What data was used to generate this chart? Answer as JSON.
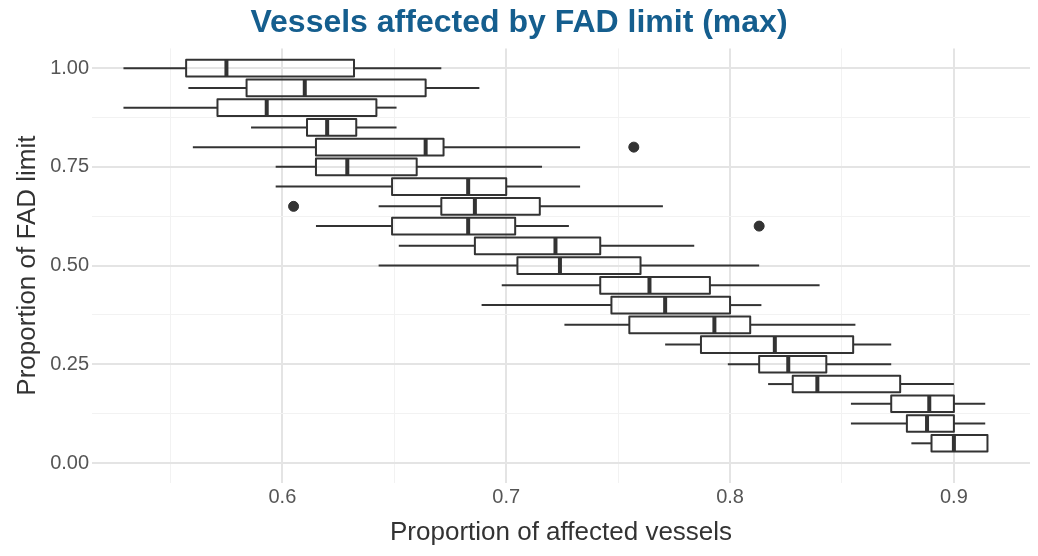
{
  "chart_data": {
    "type": "box",
    "orientation": "horizontal",
    "title": "Vessels affected by FAD limit (max)",
    "xlabel": "Proportion of affected vessels",
    "ylabel": "Proportion of FAD limit",
    "x": [
      1.0,
      0.95,
      0.9,
      0.85,
      0.8,
      0.75,
      0.7,
      0.65,
      0.6,
      0.55,
      0.5,
      0.45,
      0.4,
      0.35,
      0.3,
      0.25,
      0.2,
      0.15,
      0.1,
      0.05
    ],
    "boxes": [
      {
        "low": 0.529,
        "q1": 0.557,
        "median": 0.575,
        "q3": 0.632,
        "high": 0.671
      },
      {
        "low": 0.558,
        "q1": 0.584,
        "median": 0.61,
        "q3": 0.664,
        "high": 0.688
      },
      {
        "low": 0.529,
        "q1": 0.571,
        "median": 0.593,
        "q3": 0.642,
        "high": 0.651
      },
      {
        "low": 0.586,
        "q1": 0.611,
        "median": 0.62,
        "q3": 0.633,
        "high": 0.651
      },
      {
        "low": 0.56,
        "q1": 0.615,
        "median": 0.664,
        "q3": 0.672,
        "high": 0.733,
        "outliers": [
          0.757
        ]
      },
      {
        "low": 0.597,
        "q1": 0.615,
        "median": 0.629,
        "q3": 0.66,
        "high": 0.716
      },
      {
        "low": 0.597,
        "q1": 0.649,
        "median": 0.683,
        "q3": 0.7,
        "high": 0.733
      },
      {
        "low": 0.643,
        "q1": 0.671,
        "median": 0.686,
        "q3": 0.715,
        "high": 0.77,
        "outliers": [
          0.605
        ]
      },
      {
        "low": 0.615,
        "q1": 0.649,
        "median": 0.683,
        "q3": 0.704,
        "high": 0.728,
        "outliers": [
          0.813
        ]
      },
      {
        "low": 0.652,
        "q1": 0.686,
        "median": 0.722,
        "q3": 0.742,
        "high": 0.784
      },
      {
        "low": 0.643,
        "q1": 0.705,
        "median": 0.724,
        "q3": 0.76,
        "high": 0.813
      },
      {
        "low": 0.698,
        "q1": 0.742,
        "median": 0.764,
        "q3": 0.791,
        "high": 0.84
      },
      {
        "low": 0.689,
        "q1": 0.747,
        "median": 0.771,
        "q3": 0.8,
        "high": 0.814
      },
      {
        "low": 0.726,
        "q1": 0.755,
        "median": 0.793,
        "q3": 0.809,
        "high": 0.856
      },
      {
        "low": 0.771,
        "q1": 0.787,
        "median": 0.82,
        "q3": 0.855,
        "high": 0.872
      },
      {
        "low": 0.799,
        "q1": 0.813,
        "median": 0.826,
        "q3": 0.843,
        "high": 0.872
      },
      {
        "low": 0.817,
        "q1": 0.828,
        "median": 0.839,
        "q3": 0.876,
        "high": 0.9
      },
      {
        "low": 0.854,
        "q1": 0.872,
        "median": 0.889,
        "q3": 0.9,
        "high": 0.914
      },
      {
        "low": 0.854,
        "q1": 0.879,
        "median": 0.888,
        "q3": 0.9,
        "high": 0.914
      },
      {
        "low": 0.881,
        "q1": 0.89,
        "median": 0.9,
        "q3": 0.915,
        "high": 0.915
      }
    ],
    "color": "#333333",
    "xlim": [
      0.515,
      0.934
    ],
    "xticks": [
      {
        "value": 0.55,
        "label": null
      },
      0.6,
      {
        "value": 0.65,
        "label": null
      },
      0.7,
      {
        "value": 0.75,
        "label": null
      },
      0.8,
      {
        "value": 0.85,
        "label": null
      },
      0.9
    ],
    "ylim": [
      -0.05,
      1.05
    ],
    "yticks": [
      {
        "value": 0,
        "label": "0.00"
      },
      {
        "value": 0.125,
        "label": null
      },
      {
        "value": 0.25,
        "label": "0.25"
      },
      {
        "value": 0.375,
        "label": null
      },
      {
        "value": 0.5,
        "label": "0.50"
      },
      {
        "value": 0.625,
        "label": null
      },
      {
        "value": 0.75,
        "label": "0.75"
      },
      {
        "value": 0.875,
        "label": null
      },
      {
        "value": 1,
        "label": "1.00"
      }
    ],
    "grid": true,
    "legend": false
  }
}
